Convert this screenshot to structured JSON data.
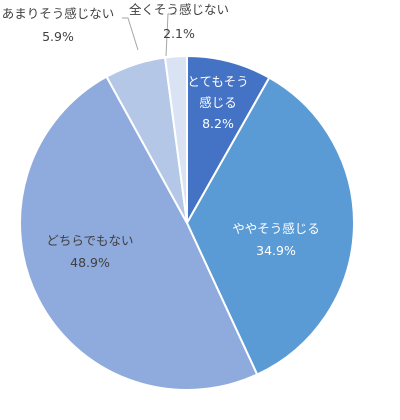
{
  "chart_data": {
    "type": "pie",
    "start_angle_deg": 0,
    "direction": "clockwise",
    "slices": [
      {
        "label_lines": [
          "とてもそう",
          "感じる"
        ],
        "percent_label": "8.2%",
        "value": 8.2,
        "color": "#4472c4",
        "label_color": "#ffffff"
      },
      {
        "label_lines": [
          "ややそう感じる"
        ],
        "percent_label": "34.9%",
        "value": 34.9,
        "color": "#5b9bd5",
        "label_color": "#ffffff"
      },
      {
        "label_lines": [
          "どちらでもない"
        ],
        "percent_label": "48.9%",
        "value": 48.9,
        "color": "#8faadc",
        "label_color": "#404040"
      },
      {
        "label_lines": [
          "あまりそう感じない"
        ],
        "percent_label": "5.9%",
        "value": 5.9,
        "color": "#b4c7e7",
        "label_color": "#404040"
      },
      {
        "label_lines": [
          "全くそう感じない"
        ],
        "percent_label": "2.1%",
        "value": 2.1,
        "color": "#dae3f3",
        "label_color": "#404040"
      }
    ],
    "slice_border_color": "#ffffff",
    "leader_line_color": "#a6a6a6"
  }
}
